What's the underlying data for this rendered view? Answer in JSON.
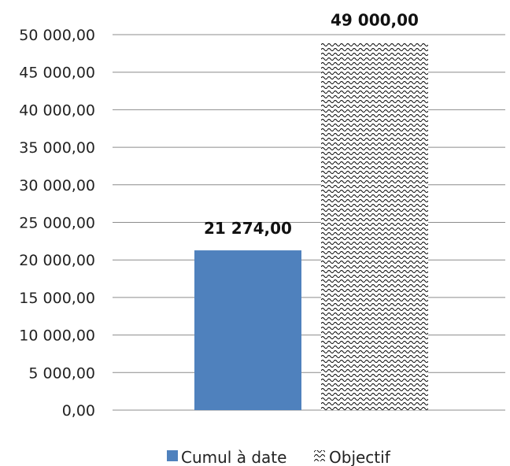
{
  "chart_data": {
    "type": "bar",
    "categories": [
      "Cumul à date",
      "Objectif"
    ],
    "series": [
      {
        "name": "Cumul à date",
        "values": [
          21274,
          null
        ],
        "color": "#4f81bd",
        "pattern": "solid"
      },
      {
        "name": "Objectif",
        "values": [
          null,
          49000
        ],
        "color": "#000000",
        "pattern": "wave"
      }
    ],
    "data_labels": [
      "21 274,00",
      "49 000,00"
    ],
    "y_ticks": [
      0,
      5000,
      10000,
      15000,
      20000,
      25000,
      30000,
      35000,
      40000,
      45000,
      50000
    ],
    "y_tick_labels": [
      "0,00",
      "5 000,00",
      "10 000,00",
      "15 000,00",
      "20 000,00",
      "25 000,00",
      "30 000,00",
      "35 000,00",
      "40 000,00",
      "45 000,00",
      "50 000,00"
    ],
    "ylim": [
      0,
      50000
    ],
    "grid": true,
    "legend": {
      "position": "bottom",
      "entries": [
        "Cumul à date",
        "Objectif"
      ]
    },
    "title": "",
    "xlabel": "",
    "ylabel": ""
  }
}
